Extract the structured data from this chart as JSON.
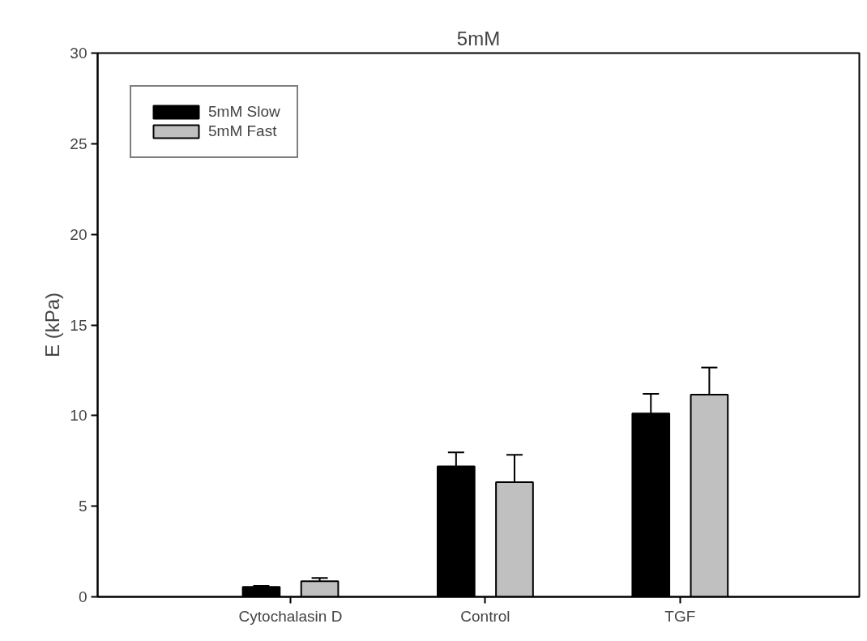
{
  "chart_data": {
    "type": "bar",
    "title": "5mM",
    "ylabel": "E (kPa)",
    "categories": [
      "Cytochalasin D",
      "Control",
      "TGF"
    ],
    "series": [
      {
        "name": "5mM Slow",
        "color": "#000000",
        "values": [
          0.55,
          7.2,
          10.12
        ],
        "errors": [
          [
            0.55,
            0.6
          ],
          [
            7.2,
            7.97
          ],
          [
            10.12,
            11.2
          ]
        ]
      },
      {
        "name": "5mM Fast",
        "color": "#c0c0c0",
        "values": [
          0.86,
          6.33,
          11.16
        ],
        "errors": [
          [
            0.86,
            1.04
          ],
          [
            6.33,
            7.84
          ],
          [
            11.16,
            12.65
          ]
        ]
      }
    ],
    "ylim": [
      0,
      30
    ],
    "yticks": [
      0,
      5,
      10,
      15,
      20,
      25,
      30
    ],
    "grid": false,
    "legend": "top left"
  }
}
